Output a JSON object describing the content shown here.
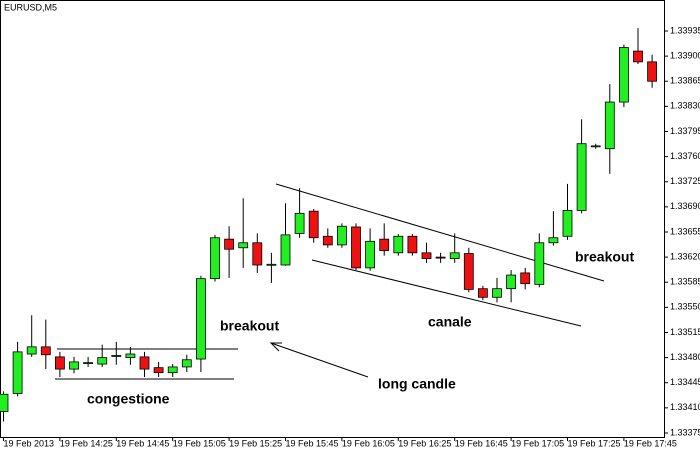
{
  "chart_data": {
    "type": "candlestick",
    "title": "EURUSD,M5",
    "up_color": "#22ee22",
    "down_color": "#ee1111",
    "grid": false,
    "annotations": [
      "congestione",
      "breakout",
      "long candle",
      "canale",
      "breakout"
    ],
    "categories": [
      "19 Feb 2013",
      null,
      null,
      null,
      "19 Feb 14:25",
      null,
      null,
      null,
      "19 Feb 14:45",
      null,
      null,
      null,
      "19 Feb 15:05",
      null,
      null,
      null,
      "19 Feb 15:25",
      null,
      null,
      null,
      "19 Feb 15:45",
      null,
      null,
      null,
      "19 Feb 16:05",
      null,
      null,
      null,
      "19 Feb 16:25",
      null,
      null,
      null,
      "19 Feb 16:45",
      null,
      null,
      null,
      "19 Feb 17:05",
      null,
      null,
      null,
      "19 Feb 17:25",
      null,
      null,
      null,
      "19 Feb 17:45",
      null,
      null
    ],
    "open": [
      1.33405,
      1.3343,
      1.33485,
      1.33495,
      1.33481,
      1.33464,
      1.33473,
      1.33471,
      1.33482,
      1.3348,
      1.33481,
      1.33466,
      1.33459,
      1.33467,
      1.33478,
      1.3359,
      1.33645,
      1.33633,
      1.3364,
      1.33609,
      1.33609,
      1.33653,
      1.33684,
      1.33649,
      1.33637,
      1.33662,
      1.33605,
      1.33645,
      1.33626,
      1.33649,
      1.33626,
      1.3362,
      1.33618,
      1.33625,
      1.33576,
      1.33564,
      1.33576,
      1.33598,
      1.33582,
      1.3364,
      1.33649,
      1.33685,
      1.33774,
      1.33771,
      1.33836,
      1.33907,
      1.33892
    ],
    "high": [
      1.33433,
      1.33502,
      1.33539,
      1.33533,
      1.33488,
      1.33481,
      1.33481,
      1.33498,
      1.33502,
      1.33495,
      1.33488,
      1.33474,
      1.33471,
      1.33484,
      1.33594,
      1.33651,
      1.33663,
      1.33702,
      1.33653,
      1.33626,
      1.33695,
      1.33716,
      1.33687,
      1.3366,
      1.33667,
      1.33667,
      1.3366,
      1.33667,
      1.33652,
      1.33652,
      1.3364,
      1.33626,
      1.33653,
      1.33633,
      1.3358,
      1.33591,
      1.33602,
      1.33605,
      1.33653,
      1.33684,
      1.33722,
      1.33812,
      1.33778,
      1.33861,
      1.33916,
      1.33939,
      1.33902
    ],
    "low": [
      1.33391,
      1.33426,
      1.33481,
      1.33464,
      1.33453,
      1.33458,
      1.33467,
      1.33467,
      1.3347,
      1.3347,
      1.33453,
      1.33453,
      1.33453,
      1.3346,
      1.3346,
      1.33586,
      1.33591,
      1.33605,
      1.33598,
      1.33584,
      1.33608,
      1.33647,
      1.3364,
      1.33633,
      1.33633,
      1.33602,
      1.33601,
      1.33622,
      1.33622,
      1.33622,
      1.33612,
      1.33612,
      1.33612,
      1.33571,
      1.3356,
      1.33557,
      1.33557,
      1.33575,
      1.33578,
      1.33636,
      1.33644,
      1.33681,
      1.33771,
      1.33736,
      1.33829,
      1.33889,
      1.33856
    ],
    "close": [
      1.33429,
      1.33488,
      1.33495,
      1.33484,
      1.33464,
      1.33474,
      1.33473,
      1.3348,
      1.33483,
      1.33485,
      1.33464,
      1.33459,
      1.33467,
      1.33477,
      1.3359,
      1.33647,
      1.33631,
      1.3364,
      1.33609,
      1.3361,
      1.33651,
      1.33681,
      1.33647,
      1.33637,
      1.33663,
      1.33605,
      1.33642,
      1.33629,
      1.33649,
      1.33626,
      1.33618,
      1.33619,
      1.33626,
      1.33575,
      1.33564,
      1.33576,
      1.33595,
      1.33583,
      1.3364,
      1.33647,
      1.33685,
      1.33778,
      1.33775,
      1.33836,
      1.33912,
      1.33892,
      1.33865
    ],
    "ylim": [
      1.33368,
      1.33974
    ],
    "yticks": [
      1.33935,
      {
        "value": 1.339,
        "label": "1.33900"
      },
      1.33865,
      {
        "value": 1.3383,
        "label": "1.33830"
      },
      1.33795,
      {
        "value": 1.3376,
        "label": "1.33760"
      },
      1.33725,
      {
        "value": 1.3369,
        "label": "1.33690"
      },
      1.33655,
      {
        "value": 1.3362,
        "label": "1.33620"
      },
      1.33585,
      {
        "value": 1.3355,
        "label": "1.33550"
      },
      1.33515,
      {
        "value": 1.3348,
        "label": "1.33480"
      },
      1.33445,
      {
        "value": 1.3341,
        "label": "1.33410"
      },
      1.33375
    ]
  }
}
